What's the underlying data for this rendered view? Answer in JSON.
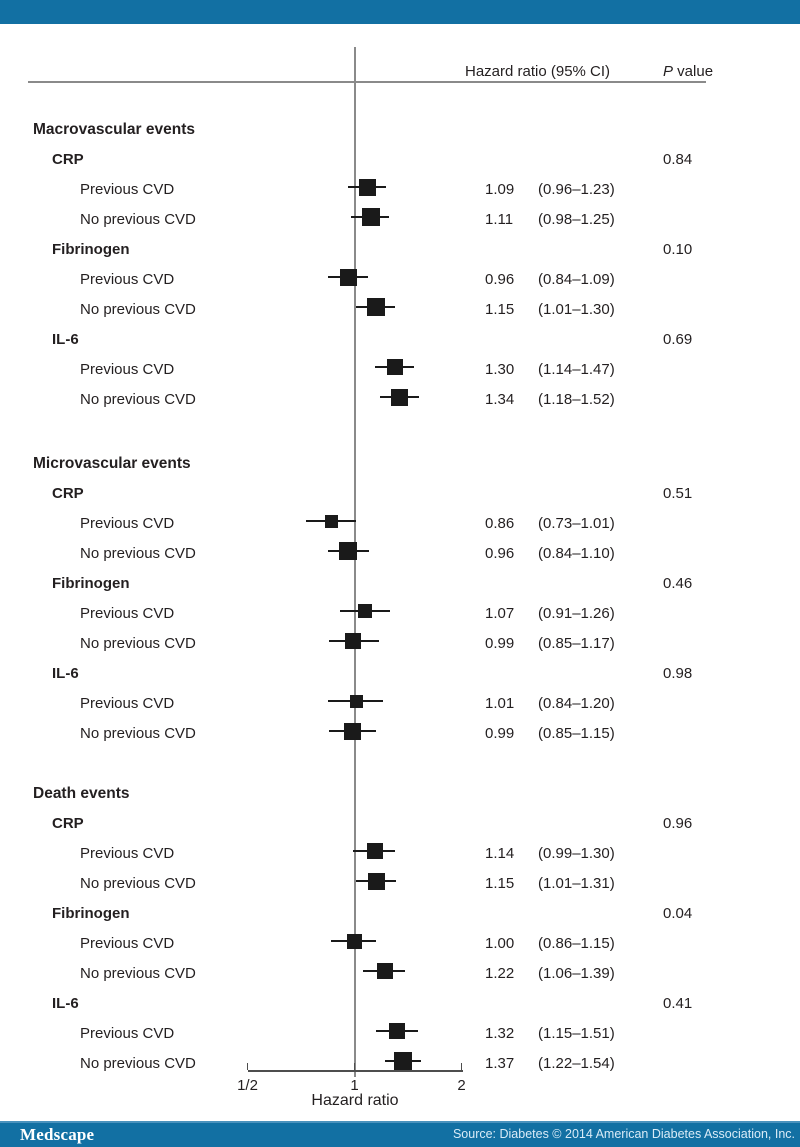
{
  "header": {
    "hr_col": "Hazard ratio (95% CI)",
    "p_col_italic": "P",
    "p_col_rest": " value"
  },
  "footer": {
    "brand": "Medscape",
    "source": "Source: Diabetes © 2014 American Diabetes Association, Inc.",
    "bar_color": "#1270a3",
    "text_color": "#d9ebf7"
  },
  "colors": {
    "accent_bar": "#1270a3",
    "marker": "#1a1a1a",
    "line_gray": "#8a8a8a",
    "text": "#231f20"
  },
  "chart_data": {
    "type": "scatter",
    "variant": "forest-plot",
    "title": "",
    "xlabel": "Hazard ratio",
    "xscale": "log2",
    "xlim": [
      0.5,
      2
    ],
    "reference_line": 1,
    "grid": false,
    "xticks": [
      {
        "label": "1/2",
        "value": 0.5
      },
      {
        "label": "1",
        "value": 1
      },
      {
        "label": "2",
        "value": 2
      }
    ],
    "columns": [
      "Hazard ratio (95% CI)",
      "P value"
    ],
    "sections": [
      {
        "label": "Macrovascular events",
        "groups": [
          {
            "label": "CRP",
            "p_value": "0.84",
            "rows": [
              {
                "label": "Previous CVD",
                "hr": 1.09,
                "ci_lo": 0.96,
                "ci_hi": 1.23,
                "hr_text": "1.09",
                "ci_text": "(0.96–1.23)",
                "marker_size": 17
              },
              {
                "label": "No previous CVD",
                "hr": 1.11,
                "ci_lo": 0.98,
                "ci_hi": 1.25,
                "hr_text": "1.11",
                "ci_text": "(0.98–1.25)",
                "marker_size": 18
              }
            ]
          },
          {
            "label": "Fibrinogen",
            "p_value": "0.10",
            "rows": [
              {
                "label": "Previous CVD",
                "hr": 0.96,
                "ci_lo": 0.84,
                "ci_hi": 1.09,
                "hr_text": "0.96",
                "ci_text": "(0.84–1.09)",
                "marker_size": 17
              },
              {
                "label": "No previous CVD",
                "hr": 1.15,
                "ci_lo": 1.01,
                "ci_hi": 1.3,
                "hr_text": "1.15",
                "ci_text": "(1.01–1.30)",
                "marker_size": 18
              }
            ]
          },
          {
            "label": "IL-6",
            "p_value": "0.69",
            "rows": [
              {
                "label": "Previous CVD",
                "hr": 1.3,
                "ci_lo": 1.14,
                "ci_hi": 1.47,
                "hr_text": "1.30",
                "ci_text": "(1.14–1.47)",
                "marker_size": 16
              },
              {
                "label": "No previous CVD",
                "hr": 1.34,
                "ci_lo": 1.18,
                "ci_hi": 1.52,
                "hr_text": "1.34",
                "ci_text": "(1.18–1.52)",
                "marker_size": 17
              }
            ]
          }
        ]
      },
      {
        "label": "Microvascular events",
        "groups": [
          {
            "label": "CRP",
            "p_value": "0.51",
            "rows": [
              {
                "label": "Previous CVD",
                "hr": 0.86,
                "ci_lo": 0.73,
                "ci_hi": 1.01,
                "hr_text": "0.86",
                "ci_text": "(0.73–1.01)",
                "marker_size": 13
              },
              {
                "label": "No previous CVD",
                "hr": 0.96,
                "ci_lo": 0.84,
                "ci_hi": 1.1,
                "hr_text": "0.96",
                "ci_text": "(0.84–1.10)",
                "marker_size": 18
              }
            ]
          },
          {
            "label": "Fibrinogen",
            "p_value": "0.46",
            "rows": [
              {
                "label": "Previous CVD",
                "hr": 1.07,
                "ci_lo": 0.91,
                "ci_hi": 1.26,
                "hr_text": "1.07",
                "ci_text": "(0.91–1.26)",
                "marker_size": 14
              },
              {
                "label": "No previous CVD",
                "hr": 0.99,
                "ci_lo": 0.85,
                "ci_hi": 1.17,
                "hr_text": "0.99",
                "ci_text": "(0.85–1.17)",
                "marker_size": 16
              }
            ]
          },
          {
            "label": "IL-6",
            "p_value": "0.98",
            "rows": [
              {
                "label": "Previous CVD",
                "hr": 1.01,
                "ci_lo": 0.84,
                "ci_hi": 1.2,
                "hr_text": "1.01",
                "ci_text": "(0.84–1.20)",
                "marker_size": 13
              },
              {
                "label": "No previous CVD",
                "hr": 0.99,
                "ci_lo": 0.85,
                "ci_hi": 1.15,
                "hr_text": "0.99",
                "ci_text": "(0.85–1.15)",
                "marker_size": 17
              }
            ]
          }
        ]
      },
      {
        "label": "Death events",
        "groups": [
          {
            "label": "CRP",
            "p_value": "0.96",
            "rows": [
              {
                "label": "Previous CVD",
                "hr": 1.14,
                "ci_lo": 0.99,
                "ci_hi": 1.3,
                "hr_text": "1.14",
                "ci_text": "(0.99–1.30)",
                "marker_size": 16
              },
              {
                "label": "No previous CVD",
                "hr": 1.15,
                "ci_lo": 1.01,
                "ci_hi": 1.31,
                "hr_text": "1.15",
                "ci_text": "(1.01–1.31)",
                "marker_size": 17
              }
            ]
          },
          {
            "label": "Fibrinogen",
            "p_value": "0.04",
            "rows": [
              {
                "label": "Previous CVD",
                "hr": 1.0,
                "ci_lo": 0.86,
                "ci_hi": 1.15,
                "hr_text": "1.00",
                "ci_text": "(0.86–1.15)",
                "marker_size": 15
              },
              {
                "label": "No previous CVD",
                "hr": 1.22,
                "ci_lo": 1.06,
                "ci_hi": 1.39,
                "hr_text": "1.22",
                "ci_text": "(1.06–1.39)",
                "marker_size": 16
              }
            ]
          },
          {
            "label": "IL-6",
            "p_value": "0.41",
            "rows": [
              {
                "label": "Previous CVD",
                "hr": 1.32,
                "ci_lo": 1.15,
                "ci_hi": 1.51,
                "hr_text": "1.32",
                "ci_text": "(1.15–1.51)",
                "marker_size": 16
              },
              {
                "label": "No previous CVD",
                "hr": 1.37,
                "ci_lo": 1.22,
                "ci_hi": 1.54,
                "hr_text": "1.37",
                "ci_text": "(1.22–1.54)",
                "marker_size": 18
              }
            ]
          }
        ]
      }
    ]
  }
}
